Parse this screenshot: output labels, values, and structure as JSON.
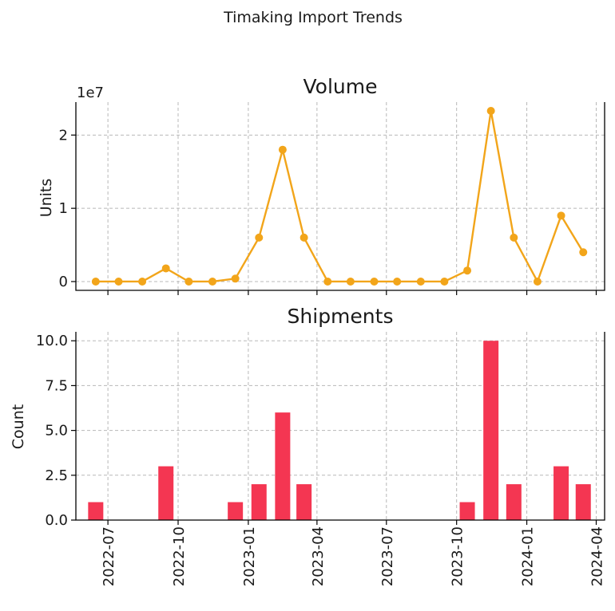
{
  "figure": {
    "suptitle": "Timaking Import Trends"
  },
  "colors": {
    "volume": "#F2A51A",
    "shipments": "#F43652",
    "grid": "#b8b8b8"
  },
  "chart_data": [
    {
      "type": "line",
      "title": "Volume",
      "xlabel": "",
      "ylabel": "Units",
      "y_offset_label": "1e7",
      "grid": true,
      "x": [
        "2022-06",
        "2022-07",
        "2022-08",
        "2022-09",
        "2022-10",
        "2022-11",
        "2022-12",
        "2023-01",
        "2023-02",
        "2023-03",
        "2023-04",
        "2023-05",
        "2023-06",
        "2023-07",
        "2023-08",
        "2023-09",
        "2023-10",
        "2023-11",
        "2023-12",
        "2024-01",
        "2024-02",
        "2024-03"
      ],
      "values": [
        0,
        0,
        0,
        1800000,
        0,
        0,
        400000,
        6000000,
        18000000,
        6000000,
        0,
        0,
        0,
        0,
        0,
        0,
        1500000,
        23300000,
        6000000,
        0,
        9000000,
        4000000
      ],
      "ylim": [
        -1200000,
        24500000
      ],
      "yticks": [
        0,
        10000000,
        20000000
      ],
      "ytick_labels": [
        "0",
        "1",
        "2"
      ],
      "xticks": [
        "2022-07",
        "2022-10",
        "2023-01",
        "2023-04",
        "2023-07",
        "2023-10",
        "2024-01",
        "2024-04"
      ]
    },
    {
      "type": "bar",
      "title": "Shipments",
      "xlabel": "",
      "ylabel": "Count",
      "grid": true,
      "x": [
        "2022-06",
        "2022-07",
        "2022-08",
        "2022-09",
        "2022-10",
        "2022-11",
        "2022-12",
        "2023-01",
        "2023-02",
        "2023-03",
        "2023-04",
        "2023-05",
        "2023-06",
        "2023-07",
        "2023-08",
        "2023-09",
        "2023-10",
        "2023-11",
        "2023-12",
        "2024-01",
        "2024-02",
        "2024-03"
      ],
      "values": [
        1,
        0,
        0,
        3,
        0,
        0,
        1,
        2,
        6,
        2,
        0,
        0,
        0,
        0,
        0,
        0,
        1,
        10,
        2,
        0,
        3,
        2
      ],
      "ylim": [
        0,
        10.5
      ],
      "yticks": [
        0,
        2.5,
        5,
        7.5,
        10
      ],
      "ytick_labels": [
        "0.0",
        "2.5",
        "5.0",
        "7.5",
        "10.0"
      ],
      "xticks": [
        "2022-07",
        "2022-10",
        "2023-01",
        "2023-04",
        "2023-07",
        "2023-10",
        "2024-01",
        "2024-04"
      ],
      "xtick_labels": [
        "2022-07",
        "2022-10",
        "2023-01",
        "2023-04",
        "2023-07",
        "2023-10",
        "2024-01",
        "2024-04"
      ]
    }
  ]
}
